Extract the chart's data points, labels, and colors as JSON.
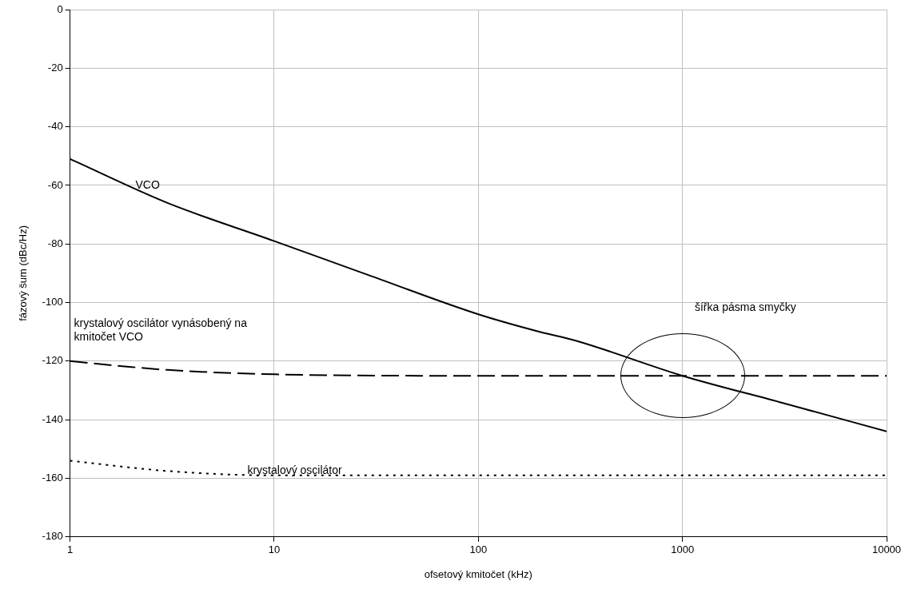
{
  "chart_data": {
    "type": "line",
    "xlabel": "ofsetový kmitočet (kHz)",
    "ylabel": "fázový šum (dBc/Hz)",
    "log": "x",
    "xlim": [
      1,
      10000
    ],
    "xticks": [
      1,
      10,
      100,
      1000,
      10000
    ],
    "ylim": [
      -180,
      0
    ],
    "yticks": [
      -180,
      -160,
      -140,
      -120,
      -100,
      -80,
      -60,
      -40,
      -20,
      0
    ],
    "grid": true,
    "legend": false,
    "marker": "none",
    "series": [
      {
        "name": "VCO",
        "color": "#000000",
        "line_style": "solid",
        "x": [
          1,
          3,
          10,
          30,
          100,
          200,
          300,
          1000,
          3000,
          10000
        ],
        "values": [
          -51,
          -66,
          -79,
          -91,
          -104,
          -110,
          -113,
          -125,
          -134,
          -144
        ]
      },
      {
        "name": "krystalový oscilátor vynásobený na kmitočet VCO",
        "color": "#000000",
        "line_style": "dashed",
        "x": [
          1,
          2,
          3,
          10,
          100,
          1000,
          10000
        ],
        "values": [
          -120,
          -122,
          -123,
          -124.5,
          -125,
          -125,
          -125
        ]
      },
      {
        "name": "krystalový oscilátor",
        "color": "#000000",
        "line_style": "dotted",
        "x": [
          1,
          3,
          10,
          30,
          100,
          1000,
          10000
        ],
        "values": [
          -154,
          -157.5,
          -159,
          -159,
          -159,
          -159,
          -159
        ]
      }
    ],
    "annotations": [
      "šířka pásma smyčky"
    ]
  }
}
